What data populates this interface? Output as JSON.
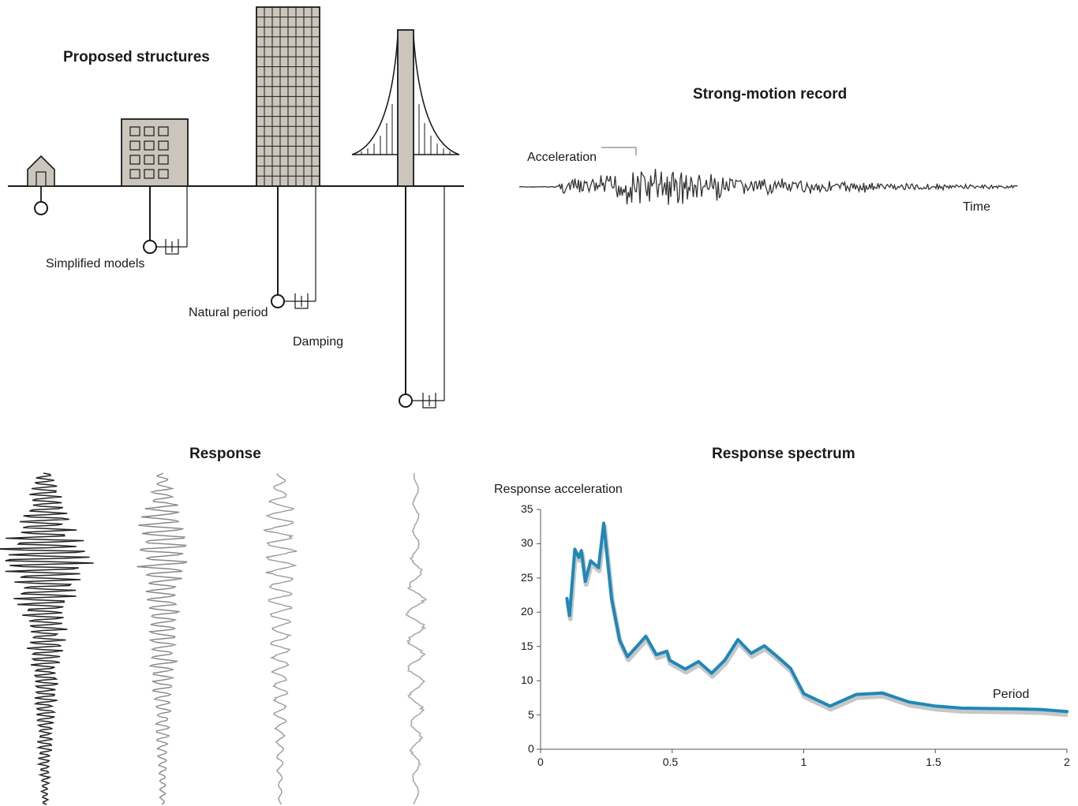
{
  "titles": {
    "proposed": "Proposed structures",
    "strong_motion": "Strong-motion record",
    "response": "Response",
    "spectrum": "Response spectrum"
  },
  "labels": {
    "simplified_models": "Simplified models",
    "natural_period": "Natural period",
    "damping": "Damping",
    "acceleration": "Acceleration",
    "time": "Time"
  },
  "structures": [
    "house",
    "mid-rise-building",
    "high-rise-building",
    "suspension-bridge-tower"
  ],
  "chart_data": {
    "type": "line",
    "title": "Response spectrum",
    "xlabel": "Period",
    "ylabel": "Response acceleration",
    "xlim": [
      0,
      2
    ],
    "ylim": [
      0,
      35
    ],
    "xticks": [
      "0",
      "0.5",
      "1",
      "1.5",
      "2"
    ],
    "yticks": [
      "0",
      "5",
      "10",
      "15",
      "20",
      "25",
      "30",
      "35"
    ],
    "line_color": "#1e88b8",
    "series": [
      {
        "x": [
          0.1,
          0.11,
          0.13,
          0.145,
          0.155,
          0.17,
          0.19,
          0.22,
          0.24,
          0.27,
          0.3,
          0.33,
          0.37,
          0.4,
          0.44,
          0.48,
          0.49,
          0.55,
          0.6,
          0.65,
          0.7,
          0.75,
          0.8,
          0.85,
          0.9,
          0.95,
          1.0,
          1.1,
          1.2,
          1.3,
          1.4,
          1.5,
          1.6,
          1.8,
          1.9,
          2.0
        ],
        "values": [
          22.0,
          19.5,
          29.2,
          28.0,
          29.0,
          24.5,
          27.5,
          26.5,
          33.0,
          22.0,
          16.0,
          13.5,
          15.2,
          16.5,
          13.8,
          14.3,
          13.0,
          11.7,
          12.8,
          11.1,
          13.0,
          16.0,
          14.0,
          15.1,
          13.5,
          11.8,
          8.1,
          6.3,
          8.0,
          8.2,
          6.9,
          6.3,
          6.0,
          5.9,
          5.8,
          5.5
        ]
      }
    ]
  }
}
